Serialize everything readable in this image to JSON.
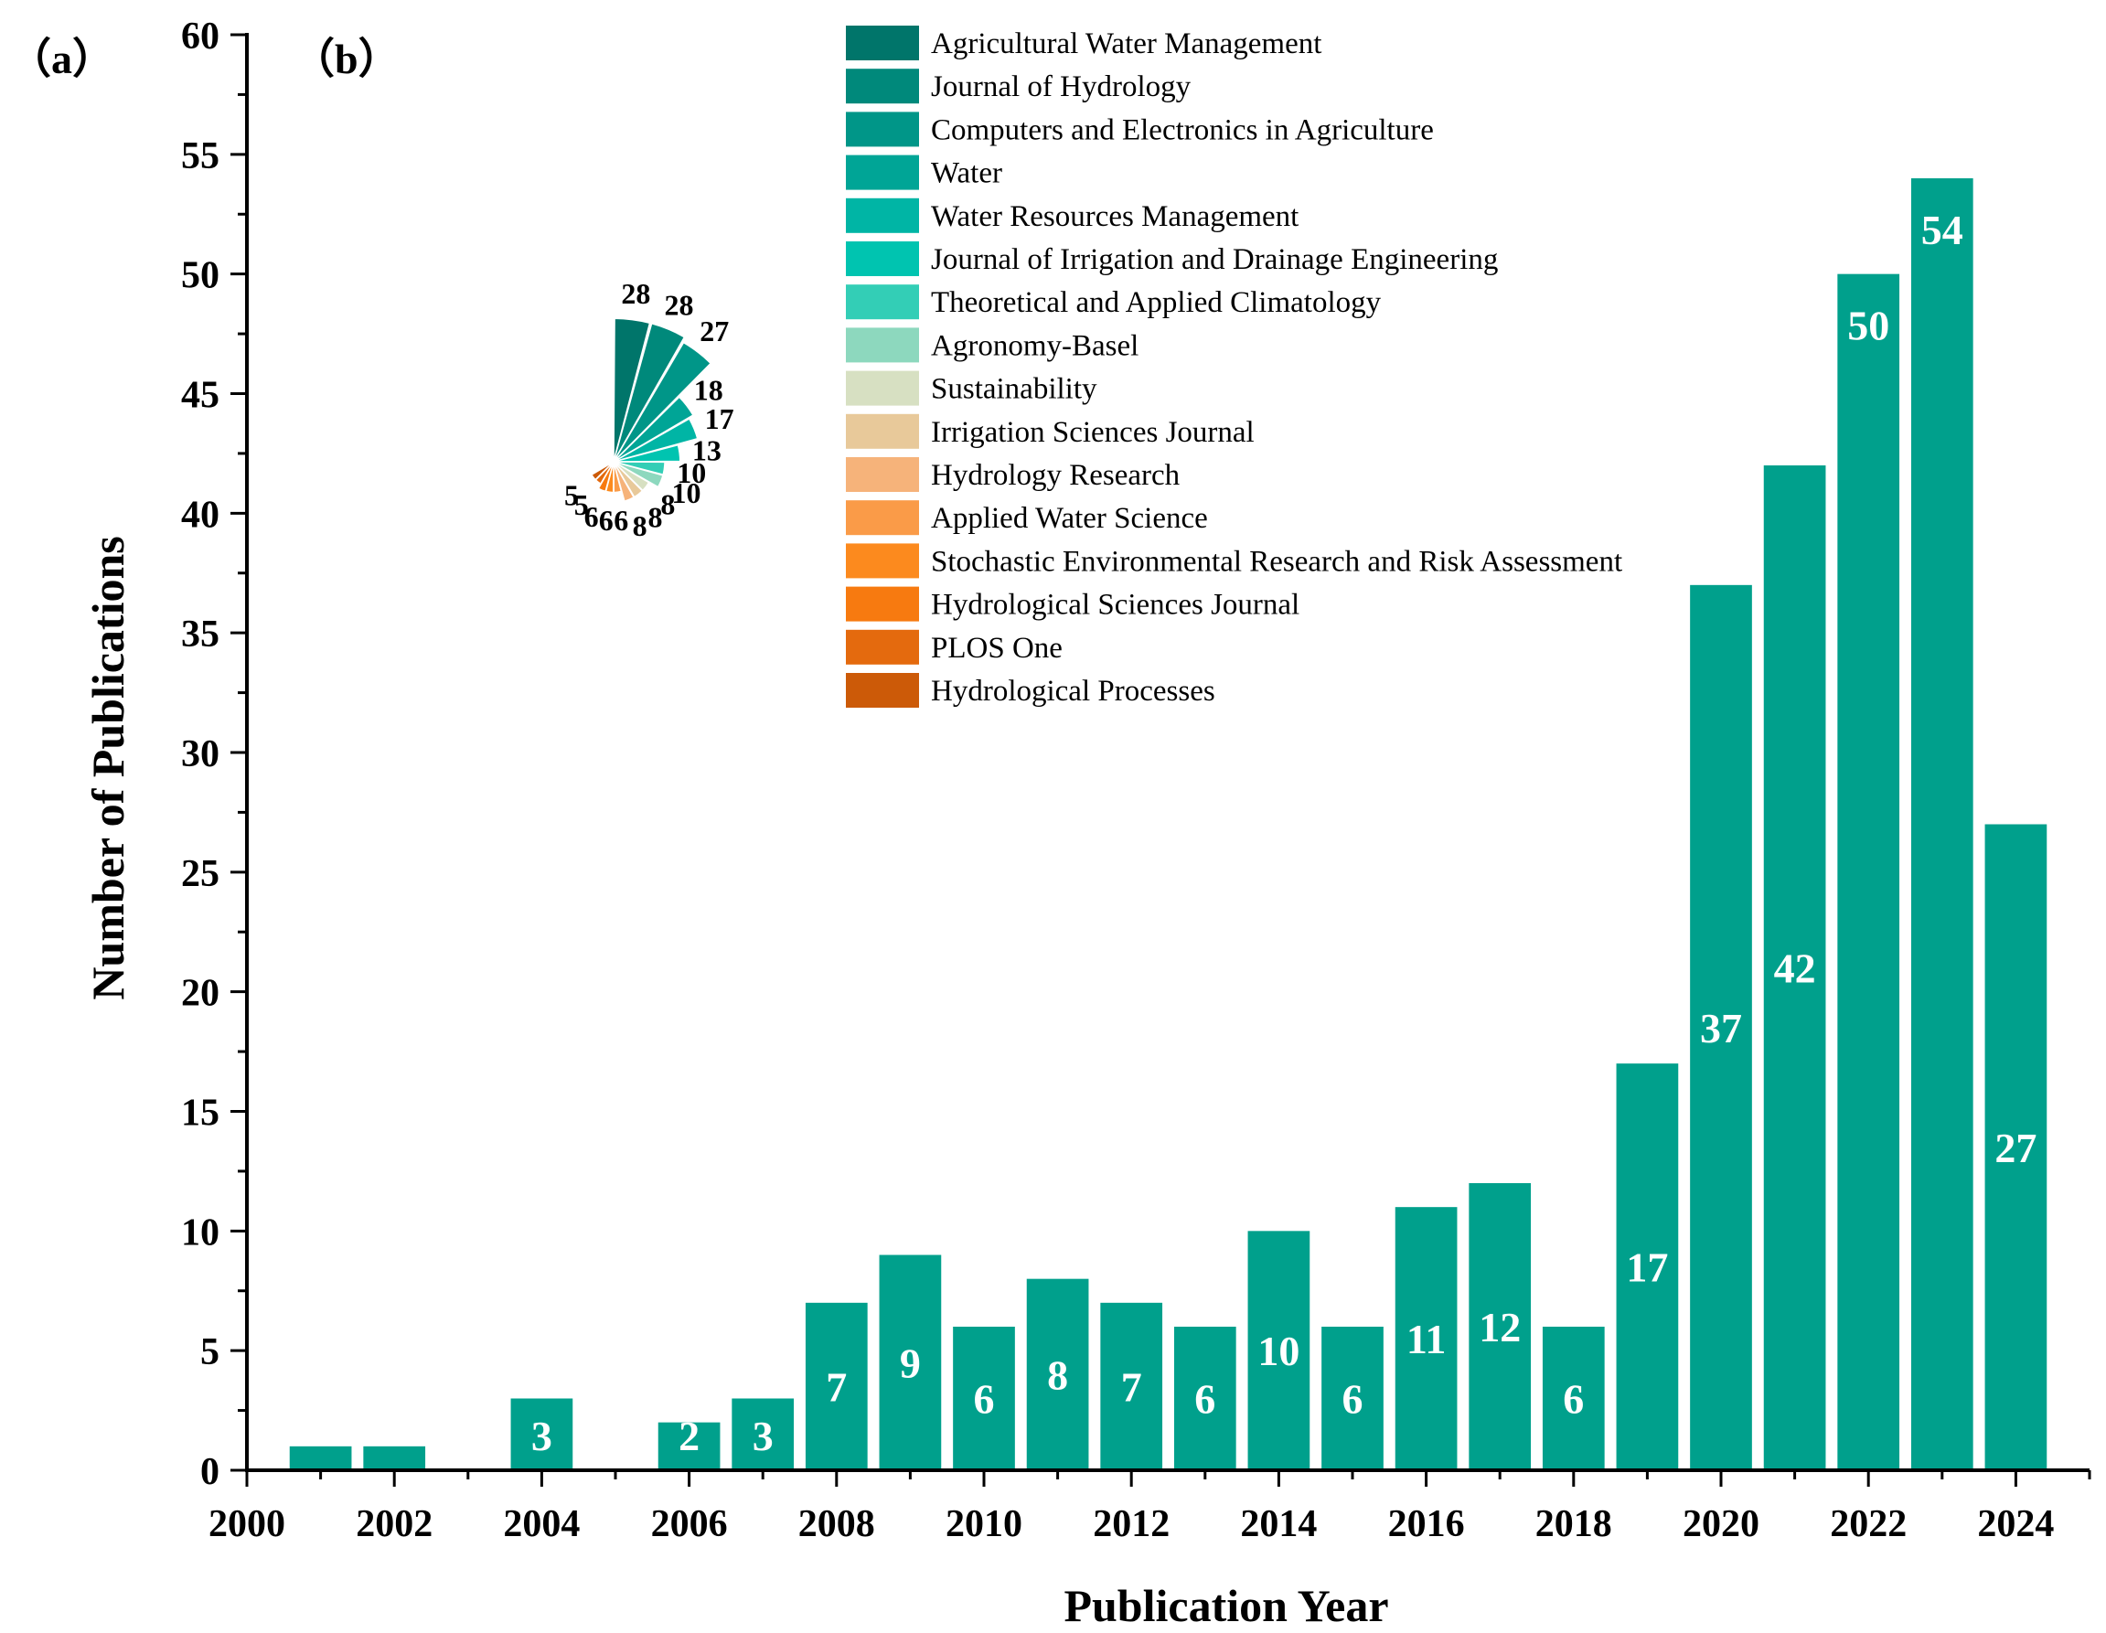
{
  "chart_data": [
    {
      "panel_label": "（a）",
      "type": "bar",
      "xlabel": "Publication Year",
      "ylabel": "Number of Publications",
      "xlim": [
        2000,
        2025
      ],
      "ylim": [
        0,
        60
      ],
      "x_ticks": [
        "2000",
        "2002",
        "2004",
        "2006",
        "2008",
        "2010",
        "2012",
        "2014",
        "2016",
        "2018",
        "2020",
        "2022",
        "2024"
      ],
      "y_ticks": [
        "0",
        "5",
        "10",
        "15",
        "20",
        "25",
        "30",
        "35",
        "40",
        "45",
        "50",
        "55",
        "60"
      ],
      "color": "#00A08C",
      "x": [
        2001,
        2002,
        2004,
        2006,
        2007,
        2008,
        2009,
        2010,
        2011,
        2012,
        2013,
        2014,
        2015,
        2016,
        2017,
        2018,
        2019,
        2020,
        2021,
        2022,
        2023,
        2024
      ],
      "values": [
        1,
        1,
        3,
        2,
        3,
        7,
        9,
        6,
        8,
        7,
        6,
        10,
        6,
        11,
        12,
        6,
        17,
        37,
        42,
        50,
        54,
        27
      ],
      "data_labels": [
        "",
        "",
        "3",
        "2",
        "3",
        "7",
        "9",
        "6",
        "8",
        "7",
        "6",
        "10",
        "6",
        "11",
        "12",
        "6",
        "17",
        "37",
        "42",
        "50",
        "54",
        "27"
      ]
    },
    {
      "panel_label": "（b）",
      "type": "pie",
      "variant": "rose",
      "labels": [
        "Agricultural Water Management",
        "Journal of Hydrology",
        "Computers and Electronics in Agriculture",
        "Water",
        "Water Resources Management",
        "Journal of Irrigation and Drainage Engineering",
        "Theoretical and Applied Climatology",
        "Agronomy-Basel",
        "Sustainability",
        "Irrigation Sciences Journal",
        "Hydrology Research",
        "Applied Water Science",
        "Stochastic Environmental Research and Risk Assessment",
        "Hydrological Sciences Journal",
        "PLOS One",
        "Hydrological Processes"
      ],
      "values": [
        28,
        28,
        27,
        18,
        17,
        13,
        10,
        10,
        8,
        8,
        8,
        6,
        6,
        6,
        5,
        5
      ],
      "data_labels": [
        "28",
        "28",
        "27",
        "18",
        "17",
        "13",
        "10",
        "10",
        "8",
        "8",
        "8",
        "6",
        "6",
        "6",
        "5",
        "5"
      ],
      "colors": [
        "#00756A",
        "#00897B",
        "#009688",
        "#00A596",
        "#00B5A5",
        "#00C4B0",
        "#33CEB6",
        "#8DD8BE",
        "#D7E0C2",
        "#E8C99A",
        "#F6B37A",
        "#FA9B48",
        "#FC8A1E",
        "#F77A10",
        "#E46A0E",
        "#CC5A08"
      ],
      "legend_position": "top-right"
    }
  ]
}
